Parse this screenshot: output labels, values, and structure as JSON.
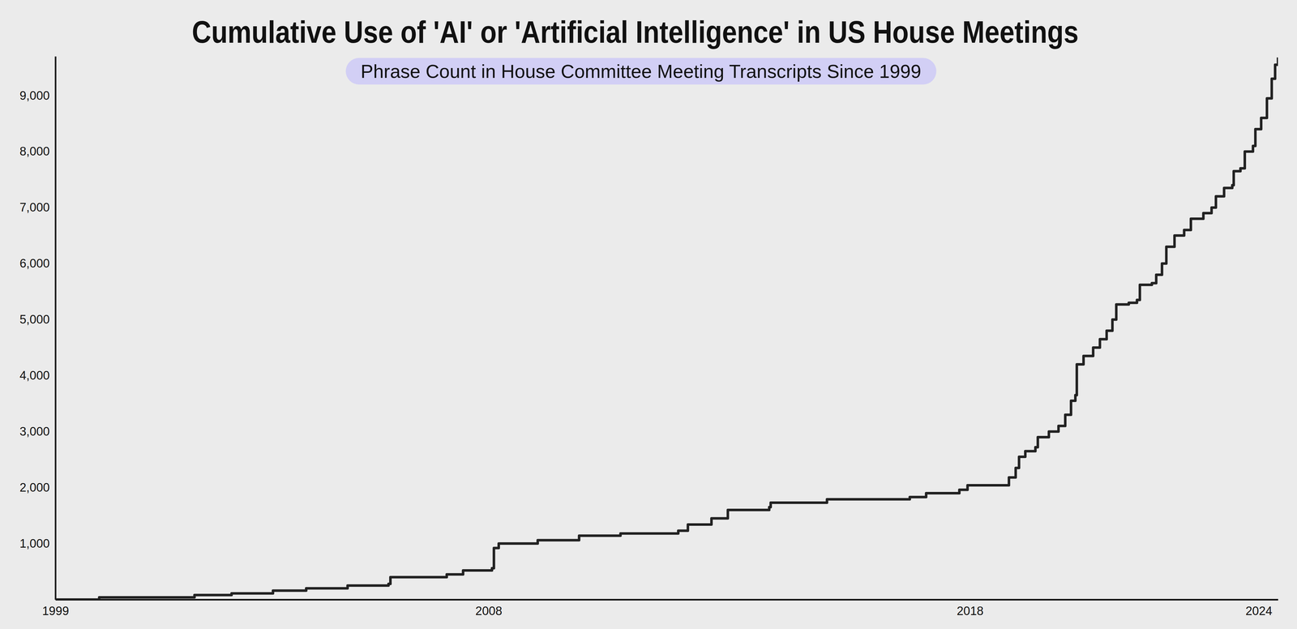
{
  "chart_data": {
    "type": "line",
    "title": "Cumulative Use of 'AI' or 'Artificial Intelligence' in US House Meetings",
    "subtitle": "Phrase Count in House Committee Meeting Transcripts Since 1999",
    "x": [
      1999.0,
      1999.91,
      2001.89,
      2002.66,
      2003.52,
      2004.21,
      2005.07,
      2005.92,
      2005.96,
      2007.13,
      2007.47,
      2008.07,
      2008.11,
      2008.21,
      2009.02,
      2009.88,
      2010.74,
      2011.94,
      2012.14,
      2012.63,
      2012.97,
      2013.83,
      2013.86,
      2015.03,
      2016.75,
      2017.09,
      2017.78,
      2017.95,
      2018.81,
      2018.95,
      2019.02,
      2019.15,
      2019.36,
      2019.41,
      2019.64,
      2019.84,
      2019.98,
      2020.1,
      2020.19,
      2020.22,
      2020.36,
      2020.56,
      2020.7,
      2020.84,
      2020.96,
      2021.04,
      2021.3,
      2021.47,
      2021.53,
      2021.78,
      2021.87,
      2021.99,
      2022.08,
      2022.25,
      2022.45,
      2022.59,
      2022.85,
      2023.02,
      2023.11,
      2023.28,
      2023.45,
      2023.48,
      2023.62,
      2023.71,
      2023.88,
      2023.93,
      2024.05,
      2024.17,
      2024.27,
      2024.34,
      2024.4
    ],
    "values": [
      0,
      40,
      80,
      110,
      160,
      200,
      250,
      280,
      400,
      450,
      520,
      560,
      920,
      1000,
      1060,
      1140,
      1180,
      1230,
      1340,
      1450,
      1600,
      1650,
      1730,
      1790,
      1830,
      1900,
      1960,
      2040,
      2180,
      2350,
      2550,
      2650,
      2720,
      2900,
      3000,
      3100,
      3300,
      3550,
      3650,
      4200,
      4350,
      4500,
      4650,
      4800,
      5000,
      5270,
      5300,
      5350,
      5620,
      5650,
      5800,
      6000,
      6300,
      6500,
      6600,
      6800,
      6900,
      7000,
      7200,
      7350,
      7400,
      7650,
      7700,
      8000,
      8100,
      8400,
      8600,
      8950,
      9300,
      9550,
      9680
    ],
    "color": "#222222",
    "line_style": "solid",
    "xlim": [
      1999,
      2024.4
    ],
    "xticks": [
      1999,
      2008,
      2018,
      2024
    ],
    "ylim": [
      0,
      9700
    ],
    "yticks": [
      {
        "value": 1000,
        "label": "1,000"
      },
      {
        "value": 2000,
        "label": "2,000"
      },
      {
        "value": 3000,
        "label": "3,000"
      },
      {
        "value": 4000,
        "label": "4,000"
      },
      {
        "value": 5000,
        "label": "5,000"
      },
      {
        "value": 6000,
        "label": "6,000"
      },
      {
        "value": 7000,
        "label": "7,000"
      },
      {
        "value": 8000,
        "label": "8,000"
      },
      {
        "value": 9000,
        "label": "9,000"
      }
    ],
    "grid": false
  }
}
